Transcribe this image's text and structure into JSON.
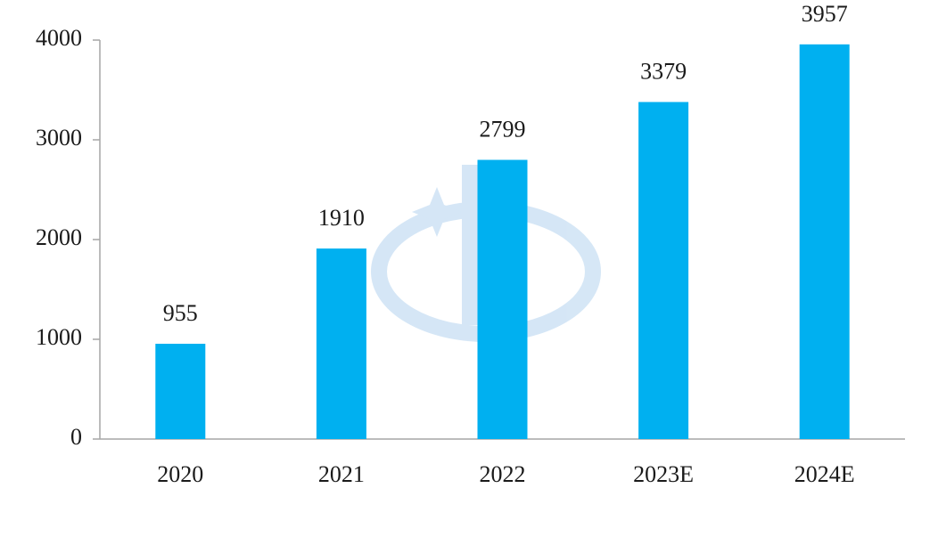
{
  "chart_data": {
    "type": "bar",
    "categories": [
      "2020",
      "2021",
      "2022",
      "2023E",
      "2024E"
    ],
    "values": [
      955,
      1910,
      2799,
      3379,
      3957
    ],
    "color": "#00b0f0",
    "ylim": [
      0,
      4000
    ],
    "yticks": [
      0,
      1000,
      2000,
      3000,
      4000
    ],
    "grid": false
  }
}
